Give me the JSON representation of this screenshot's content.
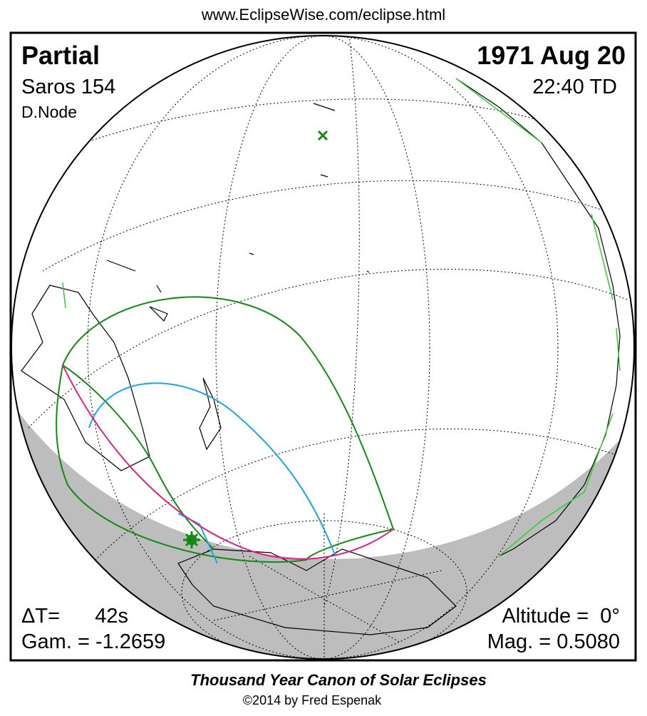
{
  "header": {
    "url": "www.EclipseWise.com/eclipse.html"
  },
  "panel": {
    "eclipse_type": "Partial",
    "saros": "Saros 154",
    "node": "D.Node",
    "date": "1971 Aug 20",
    "time": "22:40 TD",
    "delta_t_label": "ΔT=",
    "delta_t": "42s",
    "gamma": "Gam. = -1.2659",
    "altitude": "Altitude =  0°",
    "magnitude": "Mag. = 0.5080"
  },
  "footer": {
    "title": "Thousand Year Canon of Solar Eclipses",
    "credit": "©2014 by Fred Espenak"
  }
}
